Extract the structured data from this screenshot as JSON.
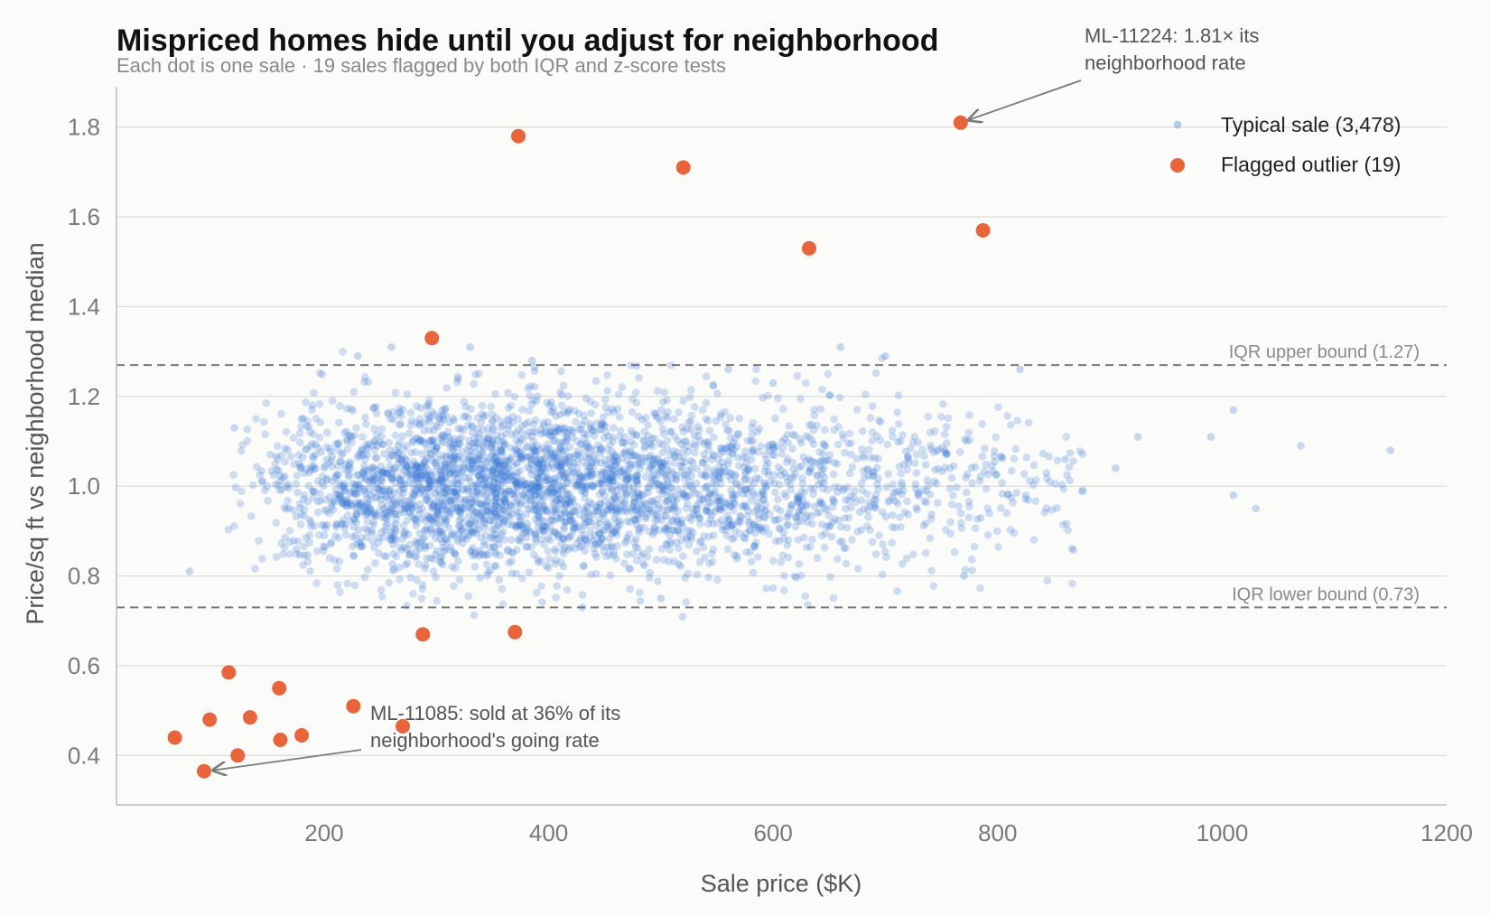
{
  "chart_data": {
    "type": "scatter",
    "title": "Mispriced homes hide until you adjust for neighborhood",
    "subtitle": "Each dot is one sale · 19 sales flagged by both IQR and z-score tests",
    "xlabel": "Sale price ($K)",
    "ylabel": "Price/sq ft vs neighborhood median",
    "xlim": [
      15,
      1200
    ],
    "ylim": [
      0.29,
      1.89
    ],
    "x_ticks": [
      200,
      400,
      600,
      800,
      1000,
      1200
    ],
    "x_tick_labels": [
      "200",
      "400",
      "600",
      "800",
      "1000",
      "1200"
    ],
    "y_ticks": [
      0.4,
      0.6,
      0.8,
      1.0,
      1.2,
      1.4,
      1.6,
      1.8
    ],
    "y_tick_labels": [
      "0.4",
      "0.6",
      "0.8",
      "1.0",
      "1.2",
      "1.4",
      "1.6",
      "1.8"
    ],
    "grid": "horizontal",
    "legend_position": "top-right",
    "colors": {
      "typical": "#3a7bd5",
      "outlier": "#e8643a",
      "reference": "#7a7a7a"
    },
    "reference_lines": [
      {
        "y": 1.27,
        "label": "IQR upper bound (1.27)"
      },
      {
        "y": 0.73,
        "label": "IQR lower bound (0.73)"
      }
    ],
    "series": [
      {
        "name": "Typical sale (3,478)",
        "count": 3478,
        "x_center": 430,
        "y_center": 1.0,
        "sample_points": [
          [
            80,
            0.81
          ],
          [
            120,
            1.13
          ],
          [
            180,
            1.15
          ],
          [
            230,
            1.29
          ],
          [
            260,
            1.31
          ],
          [
            330,
            1.31
          ],
          [
            385,
            1.28
          ],
          [
            430,
            0.73
          ],
          [
            500,
            0.75
          ],
          [
            560,
            1.26
          ],
          [
            600,
            1.23
          ],
          [
            660,
            1.31
          ],
          [
            700,
            1.29
          ],
          [
            770,
            0.8
          ],
          [
            820,
            1.26
          ],
          [
            860,
            1.06
          ],
          [
            905,
            1.04
          ],
          [
            925,
            1.11
          ],
          [
            990,
            1.11
          ],
          [
            1010,
            1.17
          ],
          [
            1010,
            0.98
          ],
          [
            1030,
            0.95
          ],
          [
            1070,
            1.09
          ],
          [
            1150,
            1.08
          ]
        ]
      },
      {
        "name": "Flagged outlier (19)",
        "count": 19,
        "x": [
          67,
          93,
          98,
          115,
          123,
          134,
          160,
          161,
          180,
          226,
          270,
          288,
          296,
          370,
          373,
          520,
          632,
          767,
          787
        ],
        "y": [
          0.44,
          0.365,
          0.48,
          0.585,
          0.4,
          0.485,
          0.55,
          0.435,
          0.445,
          0.51,
          0.465,
          0.67,
          1.33,
          0.675,
          1.78,
          1.71,
          1.53,
          1.81,
          1.57
        ]
      }
    ],
    "annotations": [
      {
        "lines": [
          "ML-11224: 1.81× its",
          "neighborhood rate"
        ],
        "point": [
          767,
          1.81
        ],
        "text_anchor": "upper-right"
      },
      {
        "lines": [
          "ML-11085: sold at 36% of its",
          "neighborhood's going rate"
        ],
        "point": [
          93,
          0.365
        ],
        "text_anchor": "lower-left"
      }
    ]
  }
}
